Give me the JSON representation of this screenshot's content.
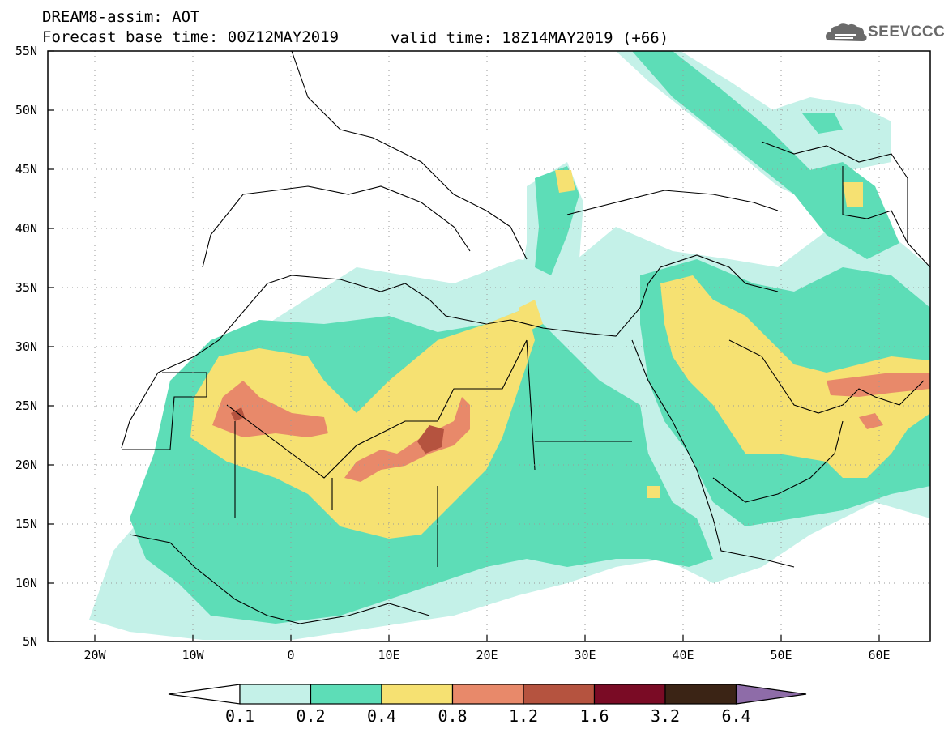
{
  "header": {
    "title": "DREAM8-assim: AOT",
    "base_time": "Forecast base time: 00Z12MAY2019",
    "valid_time": "valid time: 18Z14MAY2019 (+66)",
    "logo_text": "SEEVCCC"
  },
  "map": {
    "projection": "equirectangular",
    "lon_range": [
      -25,
      65
    ],
    "lat_range": [
      5,
      55
    ],
    "lat_labels": [
      "55N",
      "50N",
      "45N",
      "40N",
      "35N",
      "30N",
      "25N",
      "20N",
      "15N",
      "10N",
      "5N"
    ],
    "lon_labels": [
      "20W",
      "10W",
      "0",
      "10E",
      "20E",
      "30E",
      "40E",
      "50E",
      "60E"
    ],
    "gridlines": "dotted"
  },
  "colorbar": {
    "levels": [
      "0.1",
      "0.2",
      "0.4",
      "0.8",
      "1.2",
      "1.6",
      "3.2",
      "6.4"
    ],
    "colors": [
      "#c4f1e8",
      "#5dddb7",
      "#f6e172",
      "#e8896a",
      "#b5533f",
      "#7a0b25",
      "#3b2415",
      "#8e6ca8"
    ]
  }
}
